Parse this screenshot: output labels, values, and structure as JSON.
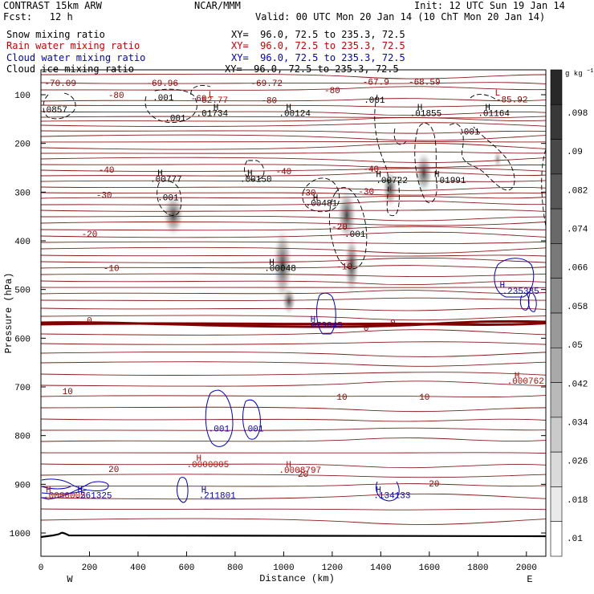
{
  "header": {
    "model": "CONTRAST 15km ARW",
    "forecast": "Fcst:   12 h",
    "center": "NCAR/MMM",
    "init": "Init: 12 UTC Sun 19 Jan 14",
    "valid": "Valid: 00 UTC Mon 20 Jan 14 (10 ChT Mon 20 Jan 14)"
  },
  "fields": [
    {
      "name": "Snow mixing ratio",
      "xy": "XY=  96.0, 72.5 to 235.3, 72.5",
      "color": "#000000"
    },
    {
      "name": "Rain water mixing ratio",
      "xy": "XY=  96.0, 72.5 to 235.3, 72.5",
      "color": "#cc0000"
    },
    {
      "name": "Cloud water mixing ratio",
      "xy": "XY=  96.0, 72.5 to 235.3, 72.5",
      "color": "#0000cc"
    },
    {
      "name": "Cloud ice mixing ratio",
      "xy": "XY=  96.0, 72.5 to 235.3, 72.5",
      "color": "#000000"
    }
  ],
  "chart_data": {
    "type": "heatmap",
    "xlabel": "Distance (km)",
    "ylabel": "Pressure (hPa)",
    "xlim": [
      0,
      2080
    ],
    "ylim": [
      1040,
      60
    ],
    "xticks": [
      0,
      200,
      400,
      600,
      800,
      1000,
      1200,
      1400,
      1600,
      1800,
      2000
    ],
    "yticks": [
      100,
      200,
      300,
      400,
      500,
      600,
      700,
      800,
      900,
      1000
    ],
    "x_ends": {
      "left": "W",
      "right": "E"
    },
    "colorbar": {
      "unit": "g kg",
      "unit_exp": "−1",
      "ticks": [
        ".01",
        ".018",
        ".026",
        ".034",
        ".042",
        ".05",
        ".058",
        ".066",
        ".074",
        ".082",
        ".09",
        ".098"
      ]
    },
    "temperature_labels": [
      {
        "text": "-70.09",
        "x": 80,
        "p": 75
      },
      {
        "text": "-69.96",
        "x": 500,
        "p": 75
      },
      {
        "text": "-69.72",
        "x": 930,
        "p": 75
      },
      {
        "text": "-67.9",
        "x": 1380,
        "p": 73
      },
      {
        "text": "-68.59",
        "x": 1580,
        "p": 73
      },
      {
        "text": "-80",
        "x": 310,
        "p": 100
      },
      {
        "text": "-80",
        "x": 940,
        "p": 111
      },
      {
        "text": "-80",
        "x": 1200,
        "p": 90
      },
      {
        "text": "-60",
        "x": 650,
        "p": 107
      },
      {
        "text": "-85.92",
        "x": 1940,
        "p": 109
      },
      {
        "text": "-40",
        "x": 270,
        "p": 253
      },
      {
        "text": "-40",
        "x": 1000,
        "p": 257
      },
      {
        "text": "-40",
        "x": 1360,
        "p": 252
      },
      {
        "text": "-30",
        "x": 260,
        "p": 305
      },
      {
        "text": "-30",
        "x": 1100,
        "p": 300
      },
      {
        "text": "-30",
        "x": 1340,
        "p": 298
      },
      {
        "text": "-20",
        "x": 200,
        "p": 385
      },
      {
        "text": "-20",
        "x": 1230,
        "p": 370
      },
      {
        "text": "-10",
        "x": 290,
        "p": 455
      },
      {
        "text": "-10",
        "x": 1250,
        "p": 452
      },
      {
        "text": "0",
        "x": 200,
        "p": 562
      },
      {
        "text": "0",
        "x": 1340,
        "p": 578
      },
      {
        "text": "0",
        "x": 1450,
        "p": 567
      },
      {
        "text": "10",
        "x": 110,
        "p": 708
      },
      {
        "text": "10",
        "x": 1240,
        "p": 720
      },
      {
        "text": "10",
        "x": 1580,
        "p": 720
      },
      {
        "text": "20",
        "x": 300,
        "p": 868
      },
      {
        "text": "20",
        "x": 1080,
        "p": 878
      },
      {
        "text": "20",
        "x": 1620,
        "p": 898
      }
    ],
    "extrema_labels": [
      {
        "text": ".0857",
        "x": 0,
        "p": 130,
        "color": "#000000"
      },
      {
        "text": ".001",
        "x": 460,
        "p": 105,
        "color": "#000000"
      },
      {
        "text": ".001",
        "x": 510,
        "p": 147,
        "color": "#000000"
      },
      {
        "text": "L",
        "x": 690,
        "p": 98,
        "color": "#cc0000"
      },
      {
        "text": "-82.77",
        "x": 640,
        "p": 110,
        "color": "#cc0000"
      },
      {
        "text": "H",
        "x": 710,
        "p": 125,
        "color": "#000000"
      },
      {
        "text": ".01734",
        "x": 640,
        "p": 137,
        "color": "#000000"
      },
      {
        "text": "H",
        "x": 1010,
        "p": 125,
        "color": "#000000"
      },
      {
        "text": ".00124",
        "x": 980,
        "p": 137,
        "color": "#000000"
      },
      {
        "text": ".001",
        "x": 1330,
        "p": 110,
        "color": "#000000"
      },
      {
        "text": "H",
        "x": 1550,
        "p": 125,
        "color": "#000000"
      },
      {
        "text": ".01855",
        "x": 1520,
        "p": 137,
        "color": "#000000"
      },
      {
        "text": "H",
        "x": 1830,
        "p": 125,
        "color": "#000000"
      },
      {
        "text": ".01164",
        "x": 1800,
        "p": 137,
        "color": "#000000"
      },
      {
        "text": "L",
        "x": 1870,
        "p": 95,
        "color": "#cc0000"
      },
      {
        "text": ".001",
        "x": 1720,
        "p": 175,
        "color": "#000000"
      },
      {
        "text": "H",
        "x": 480,
        "p": 260,
        "color": "#000000"
      },
      {
        "text": ".00777",
        "x": 450,
        "p": 272,
        "color": "#000000"
      },
      {
        "text": ".001",
        "x": 480,
        "p": 310,
        "color": "#000000"
      },
      {
        "text": "H",
        "x": 850,
        "p": 260,
        "color": "#000000"
      },
      {
        "text": ".00150",
        "x": 820,
        "p": 272,
        "color": "#000000"
      },
      {
        "text": "H",
        "x": 1380,
        "p": 262,
        "color": "#000000"
      },
      {
        "text": ".00722",
        "x": 1380,
        "p": 275,
        "color": "#000000"
      },
      {
        "text": "H",
        "x": 1620,
        "p": 262,
        "color": "#000000"
      },
      {
        "text": ".01991",
        "x": 1620,
        "p": 275,
        "color": "#000000"
      },
      {
        "text": "H",
        "x": 1120,
        "p": 310,
        "color": "#000000"
      },
      {
        "text": ".00481",
        "x": 1090,
        "p": 322,
        "color": "#000000"
      },
      {
        "text": ".001",
        "x": 1250,
        "p": 385,
        "color": "#000000"
      },
      {
        "text": "H",
        "x": 940,
        "p": 443,
        "color": "#000000"
      },
      {
        "text": ".00048",
        "x": 920,
        "p": 455,
        "color": "#000000"
      },
      {
        "text": "H",
        "x": 1890,
        "p": 490,
        "color": "#0000cc"
      },
      {
        "text": ".235385",
        "x": 1900,
        "p": 502,
        "color": "#0000cc"
      },
      {
        "text": "H",
        "x": 1110,
        "p": 560,
        "color": "#0000cc"
      },
      {
        "text": ".073845",
        "x": 1090,
        "p": 572,
        "color": "#0000cc"
      },
      {
        "text": "H",
        "x": 1950,
        "p": 675,
        "color": "#cc0000"
      },
      {
        "text": ".000762",
        "x": 1920,
        "p": 687,
        "color": "#cc0000"
      },
      {
        "text": ".001",
        "x": 690,
        "p": 785,
        "color": "#0000cc"
      },
      {
        "text": ".001",
        "x": 830,
        "p": 785,
        "color": "#0000cc"
      },
      {
        "text": "H",
        "x": 640,
        "p": 845,
        "color": "#cc0000"
      },
      {
        "text": ".0000005",
        "x": 600,
        "p": 858,
        "color": "#cc0000"
      },
      {
        "text": "H",
        "x": 1010,
        "p": 858,
        "color": "#cc0000"
      },
      {
        "text": ".0008797",
        "x": 980,
        "p": 870,
        "color": "#cc0000"
      },
      {
        "text": "H",
        "x": 20,
        "p": 910,
        "color": "#cc0000"
      },
      {
        "text": ".0000005",
        "x": 10,
        "p": 922,
        "color": "#cc0000"
      },
      {
        "text": "H",
        "x": 150,
        "p": 910,
        "color": "#0000cc"
      },
      {
        "text": ".261325",
        "x": 140,
        "p": 922,
        "color": "#0000cc"
      },
      {
        "text": "H",
        "x": 660,
        "p": 910,
        "color": "#0000cc"
      },
      {
        "text": ".211801",
        "x": 650,
        "p": 922,
        "color": "#0000cc"
      },
      {
        "text": "H",
        "x": 1380,
        "p": 910,
        "color": "#0000cc"
      },
      {
        "text": ".134133",
        "x": 1370,
        "p": 922,
        "color": "#0000cc"
      }
    ]
  }
}
